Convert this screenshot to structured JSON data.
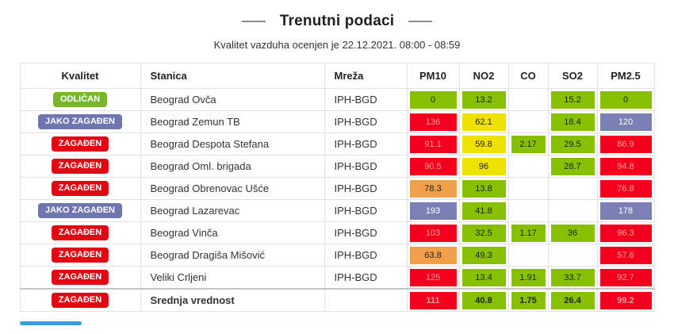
{
  "header": {
    "title": "Trenutni podaci",
    "subtitle": "Kvalitet vazduha ocenjen je 22.12.2021. 08:00 - 08:59"
  },
  "table": {
    "columns": [
      {
        "label": "Kvalitet",
        "align": "center"
      },
      {
        "label": "Stanica",
        "align": "left"
      },
      {
        "label": "Mreža",
        "align": "left"
      },
      {
        "label": "PM10",
        "align": "center"
      },
      {
        "label": "NO2",
        "align": "center"
      },
      {
        "label": "CO",
        "align": "center"
      },
      {
        "label": "SO2",
        "align": "center"
      },
      {
        "label": "PM2.5",
        "align": "center"
      }
    ],
    "rows": [
      {
        "quality": "ODLIČAN",
        "quality_class": "odlican",
        "station": "Beograd Ovča",
        "network": "IPH-BGD",
        "total": false,
        "values": [
          {
            "value": "0",
            "color": "green"
          },
          {
            "value": "13.2",
            "color": "green"
          },
          {
            "value": "",
            "color": "none"
          },
          {
            "value": "15.2",
            "color": "green"
          },
          {
            "value": "0",
            "color": "green"
          }
        ]
      },
      {
        "quality": "JAKO ZAGAĐEN",
        "quality_class": "jako-zagadjen",
        "station": "Beograd Zemun TB",
        "network": "IPH-BGD",
        "total": false,
        "values": [
          {
            "value": "136",
            "color": "red"
          },
          {
            "value": "62.1",
            "color": "yellow"
          },
          {
            "value": "",
            "color": "none"
          },
          {
            "value": "18.4",
            "color": "green"
          },
          {
            "value": "120",
            "color": "purple"
          }
        ]
      },
      {
        "quality": "ZAGAĐEN",
        "quality_class": "zagadjen",
        "station": "Beograd Despota Stefana",
        "network": "IPH-BGD",
        "total": false,
        "values": [
          {
            "value": "91.1",
            "color": "red"
          },
          {
            "value": "59.8",
            "color": "yellow"
          },
          {
            "value": "2.17",
            "color": "green"
          },
          {
            "value": "29.5",
            "color": "green"
          },
          {
            "value": "86.9",
            "color": "red"
          }
        ]
      },
      {
        "quality": "ZAGAĐEN",
        "quality_class": "zagadjen",
        "station": "Beograd Oml. brigada",
        "network": "IPH-BGD",
        "total": false,
        "values": [
          {
            "value": "90.5",
            "color": "red"
          },
          {
            "value": "96",
            "color": "yellow"
          },
          {
            "value": "",
            "color": "none"
          },
          {
            "value": "28.7",
            "color": "green"
          },
          {
            "value": "94.8",
            "color": "red"
          }
        ]
      },
      {
        "quality": "ZAGAĐEN",
        "quality_class": "zagadjen",
        "station": "Beograd Obrenovac Ušće",
        "network": "IPH-BGD",
        "total": false,
        "values": [
          {
            "value": "78.3",
            "color": "orange"
          },
          {
            "value": "13.8",
            "color": "green"
          },
          {
            "value": "",
            "color": "none"
          },
          {
            "value": "",
            "color": "none"
          },
          {
            "value": "76.8",
            "color": "red"
          }
        ]
      },
      {
        "quality": "JAKO ZAGAĐEN",
        "quality_class": "jako-zagadjen",
        "station": "Beograd Lazarevac",
        "network": "IPH-BGD",
        "total": false,
        "values": [
          {
            "value": "193",
            "color": "purple"
          },
          {
            "value": "41.8",
            "color": "green"
          },
          {
            "value": "",
            "color": "none"
          },
          {
            "value": "",
            "color": "none"
          },
          {
            "value": "178",
            "color": "purple"
          }
        ]
      },
      {
        "quality": "ZAGAĐEN",
        "quality_class": "zagadjen",
        "station": "Beograd Vinča",
        "network": "IPH-BGD",
        "total": false,
        "values": [
          {
            "value": "103",
            "color": "red"
          },
          {
            "value": "32.5",
            "color": "green"
          },
          {
            "value": "1.17",
            "color": "green"
          },
          {
            "value": "36",
            "color": "green"
          },
          {
            "value": "96.3",
            "color": "red"
          }
        ]
      },
      {
        "quality": "ZAGAĐEN",
        "quality_class": "zagadjen",
        "station": "Beograd Dragiša Mišović",
        "network": "IPH-BGD",
        "total": false,
        "values": [
          {
            "value": "63.8",
            "color": "orange"
          },
          {
            "value": "49.3",
            "color": "green"
          },
          {
            "value": "",
            "color": "none"
          },
          {
            "value": "",
            "color": "none"
          },
          {
            "value": "57.6",
            "color": "red"
          }
        ]
      },
      {
        "quality": "ZAGAĐEN",
        "quality_class": "zagadjen",
        "station": "Veliki Crljeni",
        "network": "IPH-BGD",
        "total": false,
        "values": [
          {
            "value": "125",
            "color": "red"
          },
          {
            "value": "13.4",
            "color": "green"
          },
          {
            "value": "1.91",
            "color": "green"
          },
          {
            "value": "33.7",
            "color": "green"
          },
          {
            "value": "92.7",
            "color": "red"
          }
        ]
      },
      {
        "quality": "ZAGAĐEN",
        "quality_class": "zagadjen",
        "station": "Srednja vrednost",
        "network": "",
        "total": true,
        "values": [
          {
            "value": "111",
            "color": "red"
          },
          {
            "value": "40.8",
            "color": "green"
          },
          {
            "value": "1.75",
            "color": "green"
          },
          {
            "value": "26.4",
            "color": "green"
          },
          {
            "value": "99.2",
            "color": "red"
          }
        ]
      }
    ]
  },
  "colors": {
    "cell_green": "#86c000",
    "cell_yellow": "#efe200",
    "cell_orange": "#f0a04b",
    "cell_red": "#f2001e",
    "cell_purple": "#7b80b4",
    "badge_odlican": "#76b82a",
    "badge_zagadjen": "#e30613",
    "badge_jako_zagadjen": "#6f75ad",
    "scrollbar_thumb": "#3a9bdc"
  }
}
